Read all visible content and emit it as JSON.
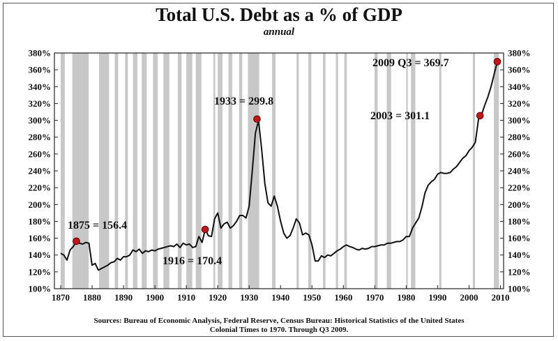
{
  "chart_data": {
    "type": "line",
    "title": "Total U.S. Debt as a % of GDP",
    "subtitle": "annual",
    "xlim": [
      1868,
      2011
    ],
    "ylim": [
      100,
      380
    ],
    "x_ticks": [
      1870,
      1880,
      1890,
      1900,
      1910,
      1920,
      1930,
      1940,
      1950,
      1960,
      1970,
      1980,
      1990,
      2000,
      2010
    ],
    "y_ticks": [
      "100%",
      "120%",
      "140%",
      "160%",
      "180%",
      "200%",
      "220%",
      "240%",
      "260%",
      "280%",
      "300%",
      "320%",
      "340%",
      "360%",
      "380%"
    ],
    "y_tick_values": [
      100,
      120,
      140,
      160,
      180,
      200,
      220,
      240,
      260,
      280,
      300,
      320,
      340,
      360,
      380
    ],
    "recession_bands": [
      [
        1870.0,
        1871.3
      ],
      [
        1873.7,
        1878.9
      ],
      [
        1882.2,
        1885.4
      ],
      [
        1887.2,
        1888.3
      ],
      [
        1890.5,
        1891.4
      ],
      [
        1893.0,
        1894.4
      ],
      [
        1895.8,
        1897.4
      ],
      [
        1899.4,
        1900.9
      ],
      [
        1902.7,
        1904.6
      ],
      [
        1907.3,
        1908.5
      ],
      [
        1910.0,
        1911.9
      ],
      [
        1913.0,
        1914.8
      ],
      [
        1918.6,
        1919.2
      ],
      [
        1920.0,
        1921.5
      ],
      [
        1923.4,
        1924.6
      ],
      [
        1926.8,
        1927.8
      ],
      [
        1929.6,
        1933.2
      ],
      [
        1937.3,
        1938.4
      ],
      [
        1945.1,
        1945.8
      ],
      [
        1948.8,
        1949.8
      ],
      [
        1953.5,
        1954.3
      ],
      [
        1957.6,
        1958.3
      ],
      [
        1960.3,
        1961.1
      ],
      [
        1969.9,
        1970.9
      ],
      [
        1973.8,
        1975.2
      ],
      [
        1980.0,
        1980.5
      ],
      [
        1981.5,
        1982.9
      ],
      [
        1990.5,
        1991.2
      ],
      [
        2001.2,
        2001.9
      ],
      [
        2007.9,
        2009.5
      ]
    ],
    "series": [
      {
        "x": [
          1870,
          1871,
          1872,
          1873,
          1874,
          1875,
          1876,
          1877,
          1878,
          1879,
          1880,
          1881,
          1882,
          1883,
          1884,
          1885,
          1886,
          1887,
          1888,
          1889,
          1890,
          1891,
          1892,
          1893,
          1894,
          1895,
          1896,
          1897,
          1898,
          1899,
          1900,
          1901,
          1902,
          1903,
          1904,
          1905,
          1906,
          1907,
          1908,
          1909,
          1910,
          1911,
          1912,
          1913,
          1914,
          1915,
          1916,
          1917,
          1918,
          1919,
          1920,
          1921,
          1922,
          1923,
          1924,
          1925,
          1926,
          1927,
          1928,
          1929,
          1930,
          1931,
          1932,
          1933,
          1934,
          1935,
          1936,
          1937,
          1938,
          1939,
          1940,
          1941,
          1942,
          1943,
          1944,
          1945,
          1946,
          1947,
          1948,
          1949,
          1950,
          1951,
          1952,
          1953,
          1954,
          1955,
          1956,
          1957,
          1958,
          1959,
          1960,
          1961,
          1962,
          1963,
          1964,
          1965,
          1966,
          1967,
          1968,
          1969,
          1970,
          1971,
          1972,
          1973,
          1974,
          1975,
          1976,
          1977,
          1978,
          1979,
          1980,
          1981,
          1982,
          1983,
          1984,
          1985,
          1986,
          1987,
          1988,
          1989,
          1990,
          1991,
          1992,
          1993,
          1994,
          1995,
          1996,
          1997,
          1998,
          1999,
          2000,
          2001,
          2002,
          2003,
          2004,
          2005,
          2006,
          2007,
          2008,
          2009
        ],
        "values": [
          142,
          140,
          134,
          146,
          150,
          156.4,
          154,
          153,
          155,
          154,
          128,
          130,
          122,
          124,
          126,
          128,
          131,
          132,
          136,
          134,
          138,
          138,
          140,
          146,
          144,
          147,
          142,
          145,
          144,
          146,
          145,
          147,
          148,
          149,
          150,
          151,
          150,
          153,
          149,
          154,
          152,
          153,
          149,
          150,
          162,
          155,
          170.4,
          163,
          162,
          183,
          190,
          172,
          177,
          179,
          172,
          175,
          180,
          187,
          187,
          184,
          198,
          240,
          285,
          299.8,
          265,
          225,
          202,
          198,
          210,
          198,
          180,
          166,
          160,
          163,
          172,
          183,
          178,
          164,
          166,
          164,
          152,
          133,
          133,
          139,
          137,
          140,
          139,
          142,
          145,
          147,
          150,
          152,
          150,
          149,
          147,
          146,
          148,
          147,
          148,
          150,
          150,
          151,
          152,
          152,
          154,
          154,
          155,
          156,
          156,
          158,
          162,
          162,
          172,
          178,
          184,
          197,
          214,
          223,
          227,
          230,
          236,
          238,
          237,
          237,
          238,
          242,
          245,
          250,
          255,
          258,
          264,
          268,
          274,
          301.1,
          307,
          318,
          328,
          340,
          355,
          369.7
        ]
      }
    ],
    "annotations": [
      {
        "label": "1875 = 156.4",
        "x": 1875,
        "y": 156.4
      },
      {
        "label": "1916 = 170.4",
        "x": 1916,
        "y": 170.4
      },
      {
        "label": "1933 = 299.8",
        "x": 1932.5,
        "y": 301.5
      },
      {
        "label": "2003 = 301.1",
        "x": 2003.5,
        "y": 305.5
      },
      {
        "label": "2009 Q3 = 369.7",
        "x": 2009,
        "y": 369.7
      }
    ],
    "grid": false,
    "colors": {
      "line": "#111111",
      "band": "#c8c8c8",
      "marker": "#c0181c"
    }
  },
  "source": {
    "line1": "Sources: Bureau of Economic Analysis, Federal Reserve, Census Bureau: Historical Statistics of the United States",
    "line2": "Colonial Times to 1970.   Through Q3 2009."
  }
}
